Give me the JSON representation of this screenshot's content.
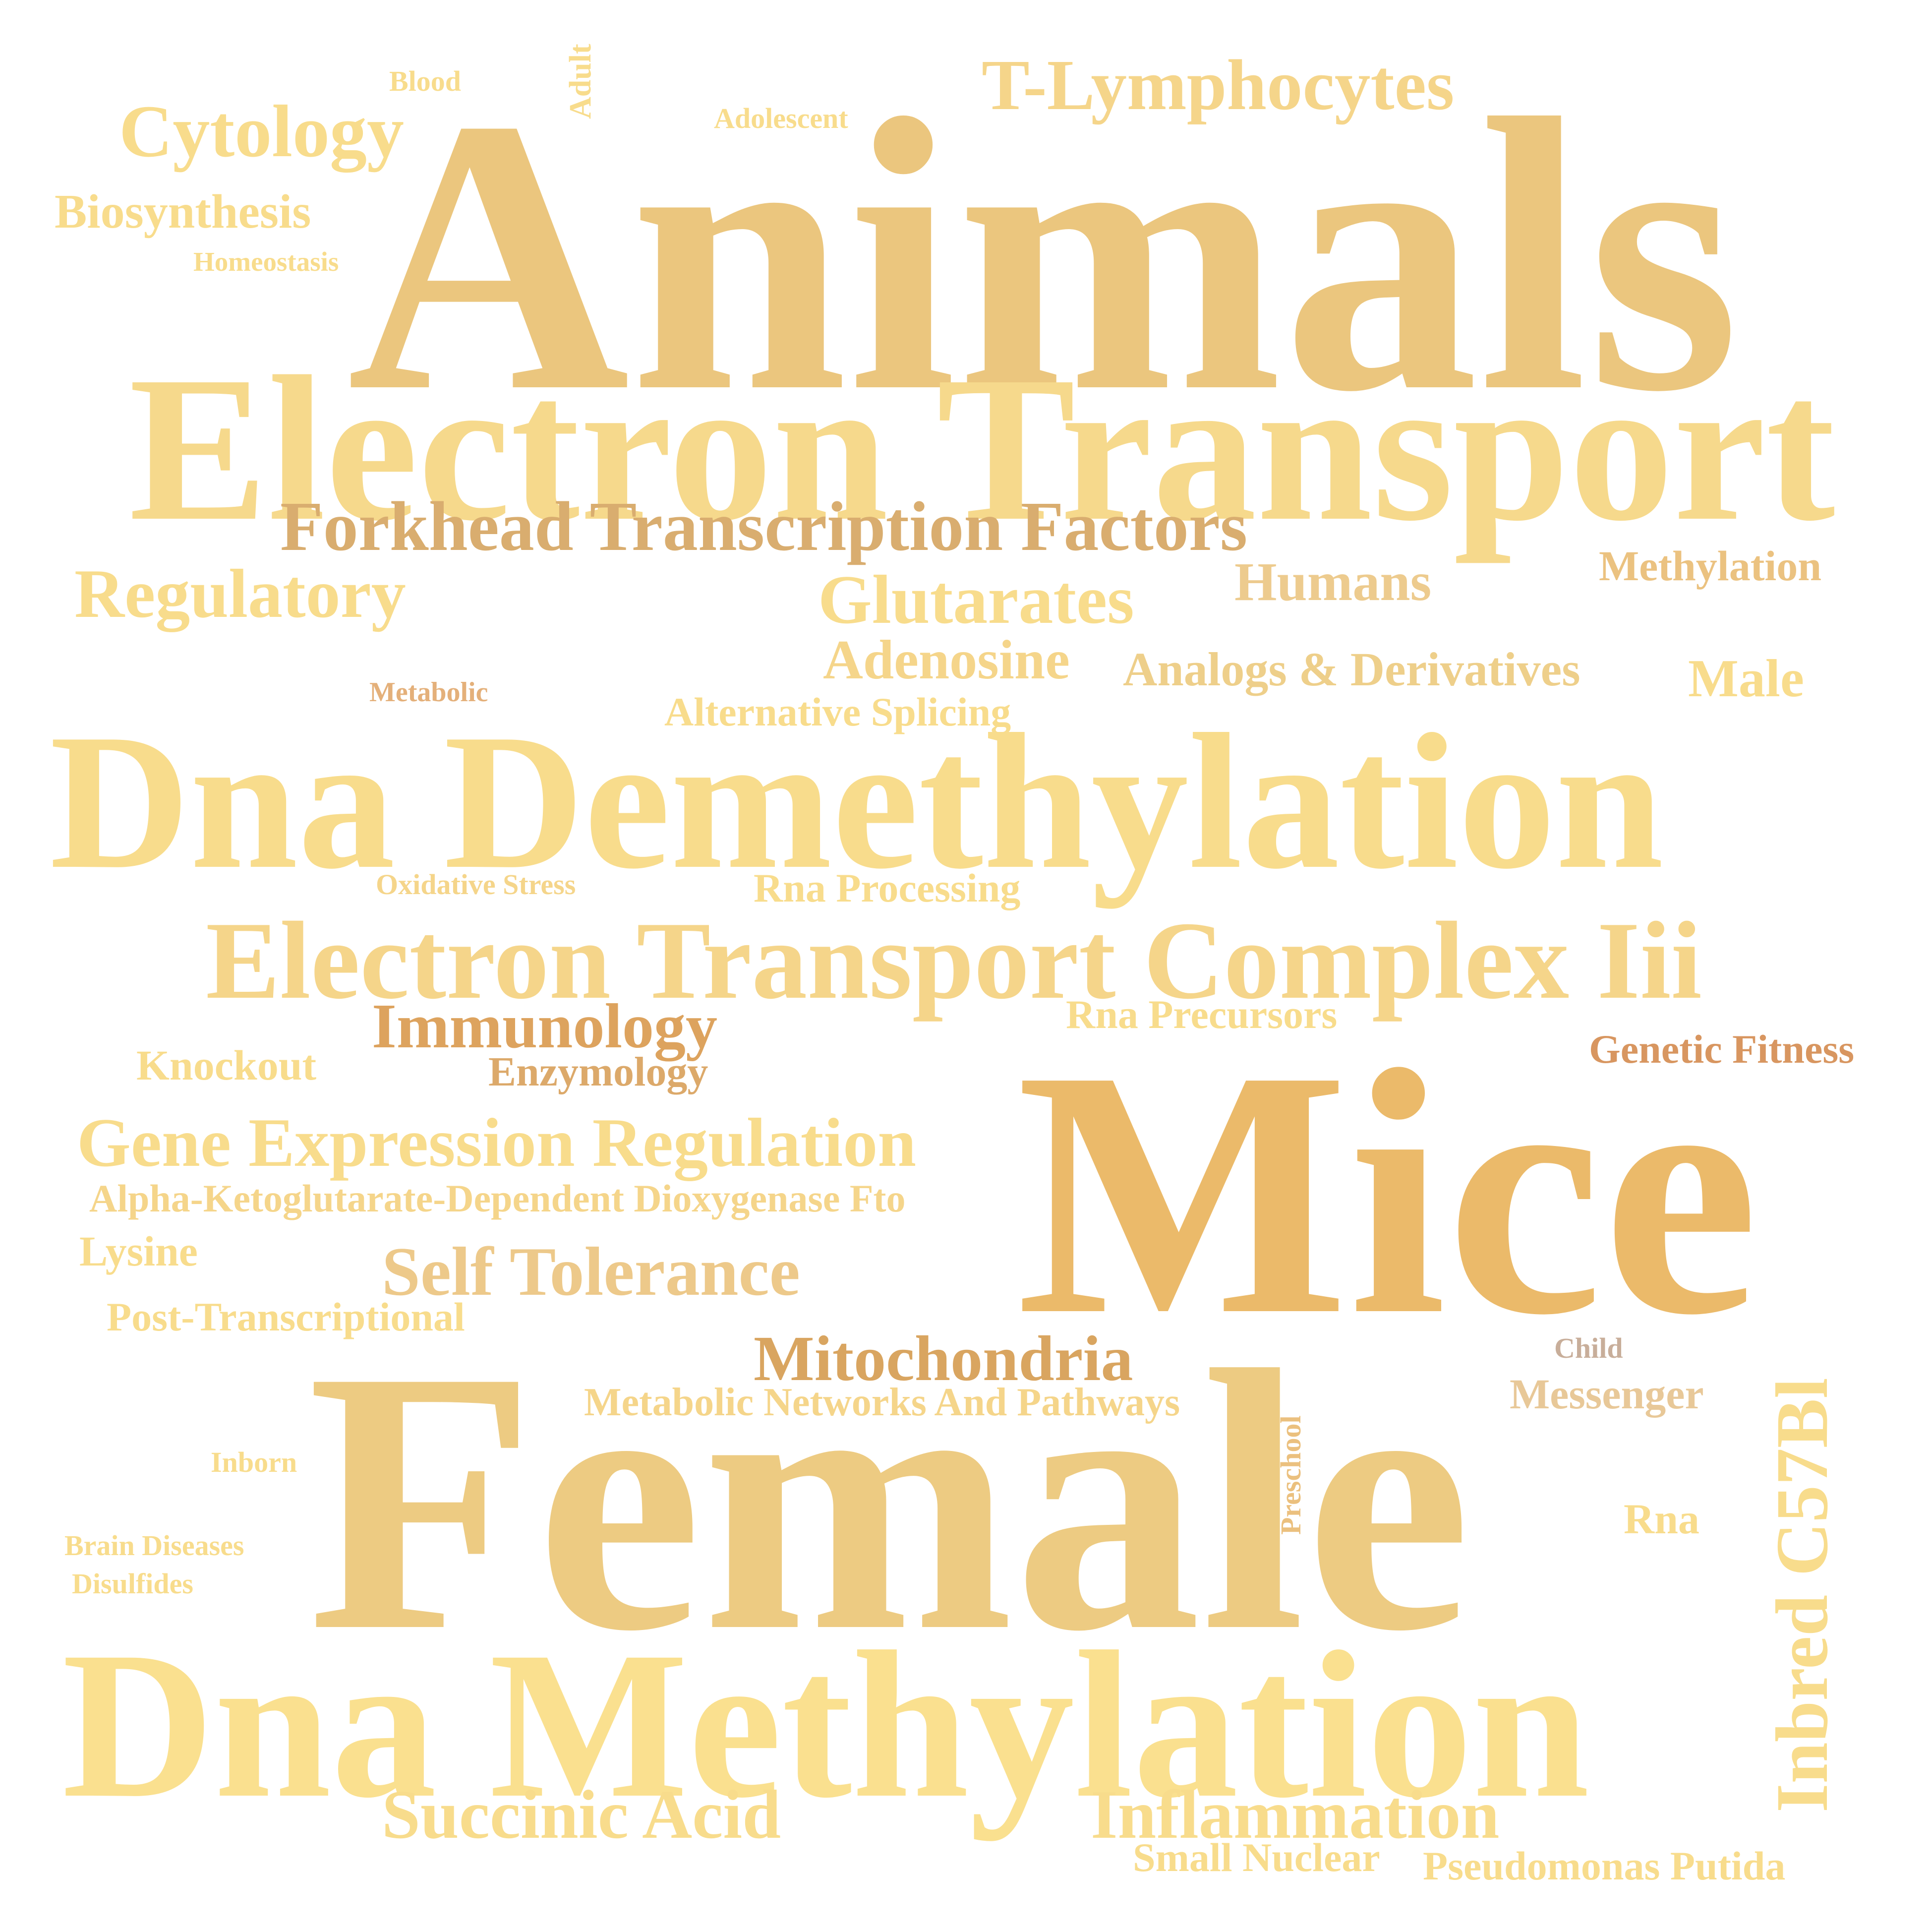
{
  "words": [
    {
      "text": "Animals",
      "color": "#EBC67E"
    },
    {
      "text": "Electron Transport",
      "color": "#F6D98C"
    },
    {
      "text": "Dna Demethylation",
      "color": "#F8DC8C"
    },
    {
      "text": "Electron Transport Complex Iii",
      "color": "#F5D58A"
    },
    {
      "text": "Mice",
      "color": "#EBBA6A"
    },
    {
      "text": "Female",
      "color": "#EDCB82"
    },
    {
      "text": "Dna Methylation",
      "color": "#FAE08F"
    },
    {
      "text": "T-Lymphocytes",
      "color": "#F5D58A"
    },
    {
      "text": "Cytology",
      "color": "#F8DC8C"
    },
    {
      "text": "Biosynthesis",
      "color": "#F8DC8C"
    },
    {
      "text": "Homeostasis",
      "color": "#F8DC8C"
    },
    {
      "text": "Blood",
      "color": "#F8DC8C"
    },
    {
      "text": "Adult",
      "color": "#F8DC8C"
    },
    {
      "text": "Adolescent",
      "color": "#F8DC8C"
    },
    {
      "text": "Forkhead Transcription Factors",
      "color": "#D9AD6F"
    },
    {
      "text": "Regulatory",
      "color": "#F8DC8C"
    },
    {
      "text": "Glutarates",
      "color": "#F8DC8C"
    },
    {
      "text": "Humans",
      "color": "#EDCB8E"
    },
    {
      "text": "Methylation",
      "color": "#EBC280"
    },
    {
      "text": "Adenosine",
      "color": "#F5D58A"
    },
    {
      "text": "Analogs & Derivatives",
      "color": "#EECF8A"
    },
    {
      "text": "Male",
      "color": "#F8DC8C"
    },
    {
      "text": "Metabolic",
      "color": "#E4B07A"
    },
    {
      "text": "Alternative Splicing",
      "color": "#F8DC8C"
    },
    {
      "text": "Oxidative Stress",
      "color": "#F5D58A"
    },
    {
      "text": "Rna Processing",
      "color": "#F8DC8C"
    },
    {
      "text": "Immunology",
      "color": "#DDA35E"
    },
    {
      "text": "Rna Precursors",
      "color": "#F8DC8C"
    },
    {
      "text": "Genetic Fitness",
      "color": "#D89660"
    },
    {
      "text": "Knockout",
      "color": "#F8DC8C"
    },
    {
      "text": "Enzymology",
      "color": "#DCA96A"
    },
    {
      "text": "Gene Expression Regulation",
      "color": "#F8DC8C"
    },
    {
      "text": "Alpha-Ketoglutarate-Dependent Dioxygenase Fto",
      "color": "#F5D58A"
    },
    {
      "text": "Lysine",
      "color": "#F8DC8C"
    },
    {
      "text": "Self Tolerance",
      "color": "#EDC98A"
    },
    {
      "text": "Post-Transcriptional",
      "color": "#F8DC8C"
    },
    {
      "text": "Mitochondria",
      "color": "#D9A560"
    },
    {
      "text": "Child",
      "color": "#C8AE9A"
    },
    {
      "text": "Messenger",
      "color": "#E8C898"
    },
    {
      "text": "Metabolic Networks And Pathways",
      "color": "#F5D58A"
    },
    {
      "text": "Inbred C57Bl",
      "color": "#F8DC8C"
    },
    {
      "text": "Inborn",
      "color": "#F8DC8C"
    },
    {
      "text": "Preschool",
      "color": "#EBC07E"
    },
    {
      "text": "Rna",
      "color": "#F8DC8C"
    },
    {
      "text": "Brain Diseases",
      "color": "#F8DC8C"
    },
    {
      "text": "Disulfides",
      "color": "#F8DC8C"
    },
    {
      "text": "Succinic Acid",
      "color": "#F8DC8C"
    },
    {
      "text": "Inflammation",
      "color": "#F8DC8C"
    },
    {
      "text": "Small Nuclear",
      "color": "#F8DC8C"
    },
    {
      "text": "Pseudomonas Putida",
      "color": "#F8DC8C"
    }
  ]
}
